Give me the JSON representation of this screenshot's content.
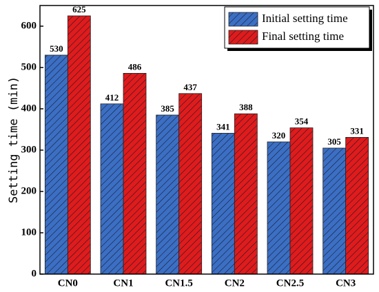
{
  "chart_data": {
    "type": "bar",
    "y_label": "Setting time (min)",
    "categories": [
      "CN0",
      "CN1",
      "CN1.5",
      "CN2",
      "CN2.5",
      "CN3"
    ],
    "series": [
      {
        "name": "Initial setting time",
        "color": "#3b6fc4",
        "values": [
          530,
          412,
          385,
          341,
          320,
          305
        ]
      },
      {
        "name": "Final setting time",
        "color": "#e01b1b",
        "values": [
          625,
          486,
          437,
          388,
          354,
          331
        ]
      }
    ],
    "ylim": [
      0,
      650
    ],
    "yticks": [
      0,
      100,
      200,
      300,
      400,
      500,
      600
    ],
    "legend": "upper right",
    "hatch": true
  }
}
